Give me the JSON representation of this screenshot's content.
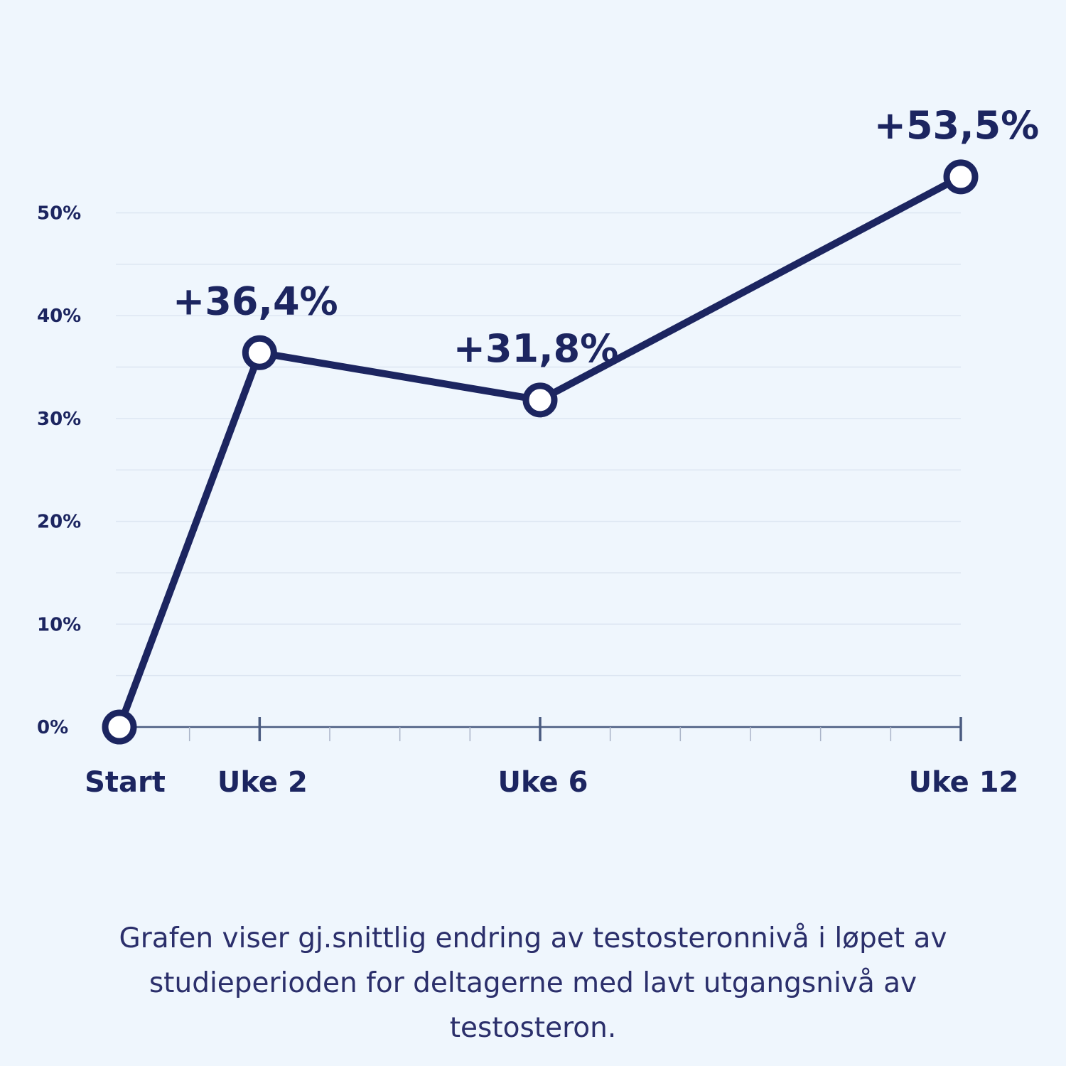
{
  "chart_data": {
    "type": "line",
    "categories": [
      "Start",
      "Uke 2",
      "Uke 6",
      "Uke 12"
    ],
    "x": [
      0,
      2,
      6,
      12
    ],
    "values": [
      0,
      36.4,
      31.8,
      53.5
    ],
    "data_labels": [
      "",
      "+36,4%",
      "+31,8%",
      "+53,5%"
    ],
    "y_ticks": [
      "0%",
      "10%",
      "20%",
      "30%",
      "40%",
      "50%"
    ],
    "y_tick_values": [
      0,
      10,
      20,
      30,
      40,
      50
    ],
    "ylim": [
      0,
      55
    ],
    "xlim": [
      0,
      12
    ],
    "grid": true,
    "title": "",
    "xlabel": "",
    "ylabel": "",
    "line_color": "#1c2560",
    "marker_fill": "#ffffff",
    "grid_color": "#dde6f2",
    "axis_color": "#4a5b80"
  },
  "caption": "Grafen viser gj.snittlig endring av testosteronnivå i løpet av studieperioden for deltagerne med lavt utgangsnivå av testosteron."
}
